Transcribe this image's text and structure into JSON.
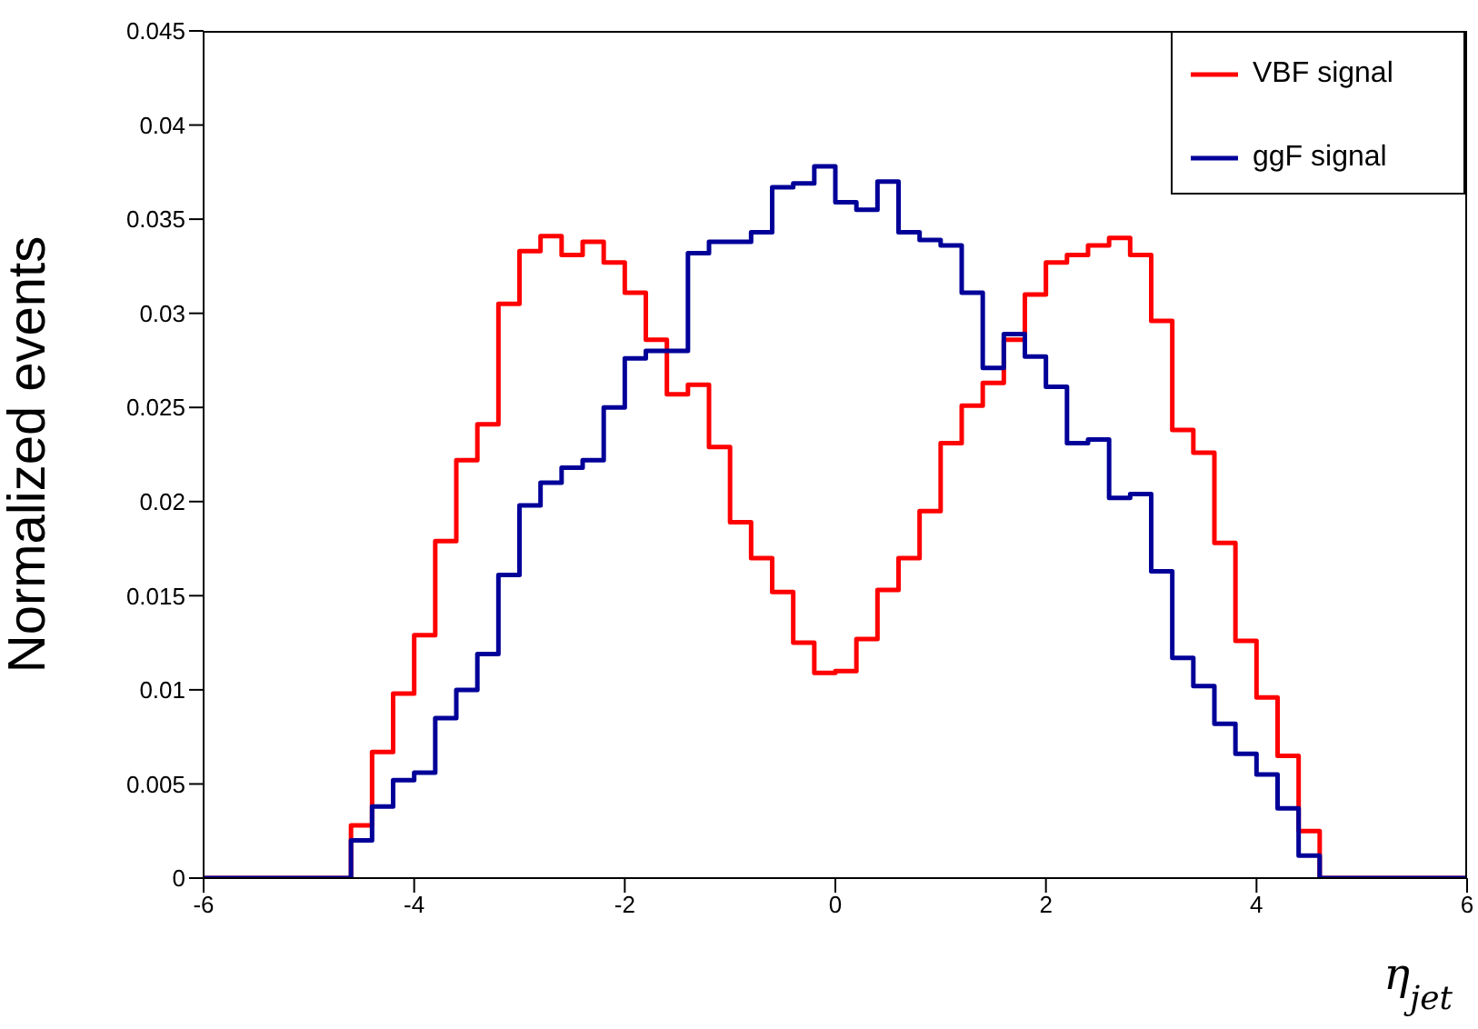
{
  "chart_data": {
    "type": "histogram",
    "xlabel": "η$_{jet}$",
    "ylabel": "Normalized events",
    "bins": [
      -6,
      -5.8,
      -5.6,
      -5.4,
      -5.2,
      -5,
      -4.8,
      -4.6,
      -4.4,
      -4.2,
      -4,
      -3.8,
      -3.6,
      -3.4,
      -3.2,
      -3,
      -2.8,
      -2.6,
      -2.4,
      -2.2,
      -2,
      -1.8,
      -1.6,
      -1.4,
      -1.2,
      -1,
      -0.8,
      -0.6,
      -0.4,
      -0.2,
      0,
      0.2,
      0.4,
      0.6,
      0.8,
      1,
      1.2,
      1.4,
      1.6,
      1.8,
      2,
      2.2,
      2.4,
      2.6,
      2.8,
      3,
      3.2,
      3.4,
      3.6,
      3.8,
      4,
      4.2,
      4.4,
      4.6,
      4.8,
      5,
      5.2,
      5.4,
      5.6,
      5.8,
      6
    ],
    "series": [
      {
        "name": "VBF signal",
        "color": "#ff0000",
        "values": [
          0,
          0,
          0,
          0,
          0,
          0,
          0,
          0.0028,
          0.0067,
          0.0098,
          0.0129,
          0.0179,
          0.0222,
          0.0241,
          0.0305,
          0.0333,
          0.0341,
          0.0331,
          0.0338,
          0.0327,
          0.0311,
          0.0286,
          0.0257,
          0.0262,
          0.0229,
          0.0189,
          0.017,
          0.0152,
          0.0125,
          0.0109,
          0.011,
          0.0127,
          0.0153,
          0.017,
          0.0195,
          0.0231,
          0.0251,
          0.0263,
          0.0286,
          0.031,
          0.0327,
          0.0331,
          0.0336,
          0.034,
          0.0331,
          0.0296,
          0.0238,
          0.0226,
          0.0178,
          0.0126,
          0.0096,
          0.0065,
          0.0025,
          0,
          0,
          0,
          0,
          0,
          0,
          0
        ]
      },
      {
        "name": "ggF signal",
        "color": "#000099",
        "values": [
          0,
          0,
          0,
          0,
          0,
          0,
          0,
          0.002,
          0.0038,
          0.0052,
          0.0056,
          0.0085,
          0.01,
          0.0119,
          0.0161,
          0.0198,
          0.021,
          0.0218,
          0.0222,
          0.025,
          0.0276,
          0.028,
          0.028,
          0.0332,
          0.0338,
          0.0338,
          0.0343,
          0.0367,
          0.0369,
          0.0378,
          0.0359,
          0.0355,
          0.037,
          0.0343,
          0.0339,
          0.0336,
          0.0311,
          0.0271,
          0.0289,
          0.0277,
          0.0261,
          0.0231,
          0.0233,
          0.0202,
          0.0204,
          0.0163,
          0.0117,
          0.0102,
          0.0082,
          0.0066,
          0.0055,
          0.0037,
          0.0012,
          0,
          0,
          0,
          0,
          0,
          0,
          0
        ]
      }
    ],
    "xlim": [
      -6,
      6
    ],
    "xticks": [
      -6,
      -4,
      -2,
      0,
      2,
      4,
      6
    ],
    "ylim": [
      0,
      0.045
    ],
    "yticks": [
      0,
      0.005,
      0.01,
      0.015,
      0.02,
      0.025,
      0.03,
      0.035,
      0.04,
      0.045
    ],
    "legend": "top right",
    "grid": false
  }
}
